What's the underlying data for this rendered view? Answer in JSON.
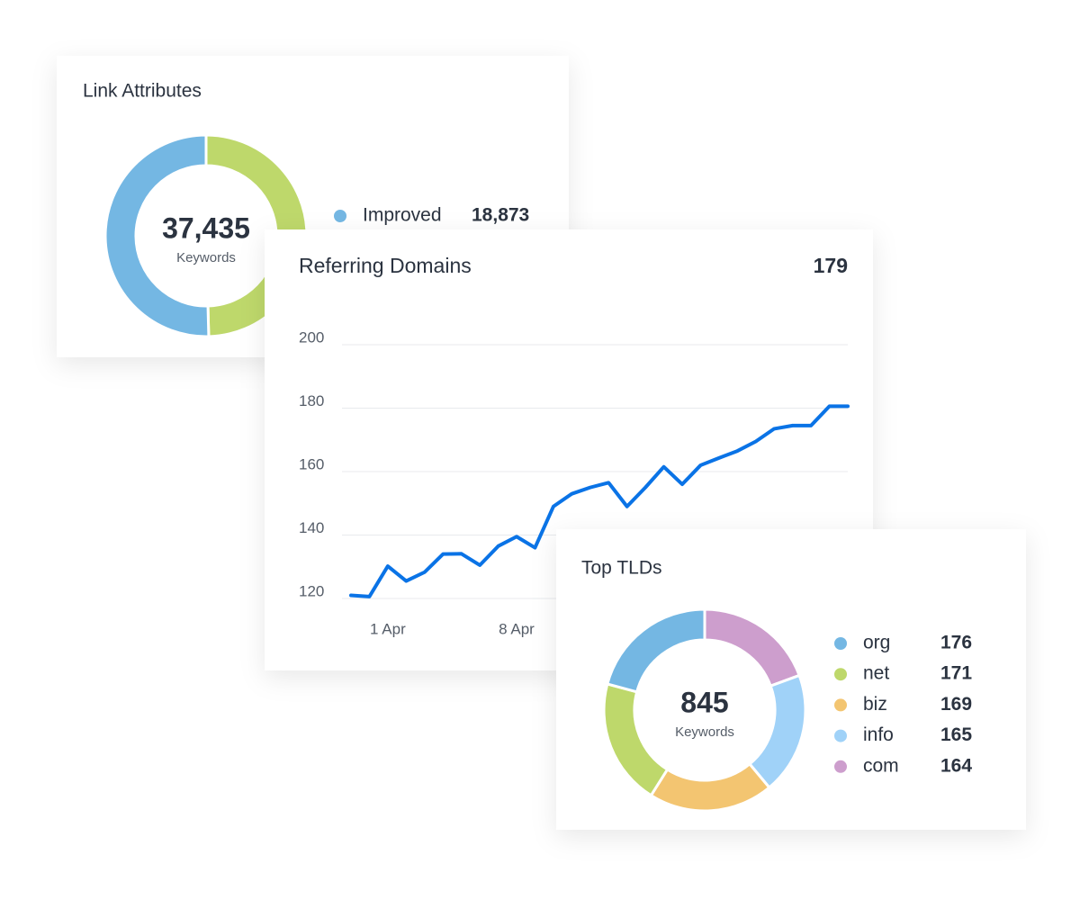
{
  "chart_data": [
    {
      "type": "pie",
      "title": "Link Attributes",
      "center_value": "37,435",
      "center_label": "Keywords",
      "categories": [
        "Improved",
        null
      ],
      "values": [
        18873,
        18562
      ],
      "value_labels": [
        "18,873",
        null
      ],
      "colors": [
        "#74b7e3",
        "#bed86b"
      ]
    },
    {
      "type": "line",
      "title": "Referring Domains",
      "current_value": 179,
      "categories": [
        null,
        null,
        "1 Apr",
        null,
        null,
        null,
        null,
        null,
        null,
        "8 Apr",
        null,
        null,
        null,
        null,
        null,
        null,
        null,
        null,
        null,
        null,
        null,
        null,
        null,
        null,
        null,
        null,
        null,
        null
      ],
      "values": [
        121,
        120.6,
        130.2,
        125.5,
        128.3,
        134,
        134.1,
        130.5,
        136.5,
        139.5,
        136,
        149,
        153,
        155,
        156.5,
        149,
        155,
        161.5,
        156,
        162,
        164.3,
        166.5,
        169.5,
        173.5,
        174.5,
        174.5,
        180.6,
        180.6
      ],
      "color": "#0a73e6",
      "ylim": [
        120,
        200
      ],
      "yticks": [
        120,
        140,
        160,
        180,
        200
      ],
      "grid": true
    },
    {
      "type": "pie",
      "title": "Top TLDs",
      "center_value": "845",
      "center_label": "Keywords",
      "categories": [
        "org",
        "net",
        "biz",
        "info",
        "com"
      ],
      "values": [
        176,
        171,
        169,
        165,
        164
      ],
      "colors": [
        "#74b7e3",
        "#bed86b",
        "#f3c571",
        "#a0d2f8",
        "#cd9ecd"
      ]
    }
  ]
}
